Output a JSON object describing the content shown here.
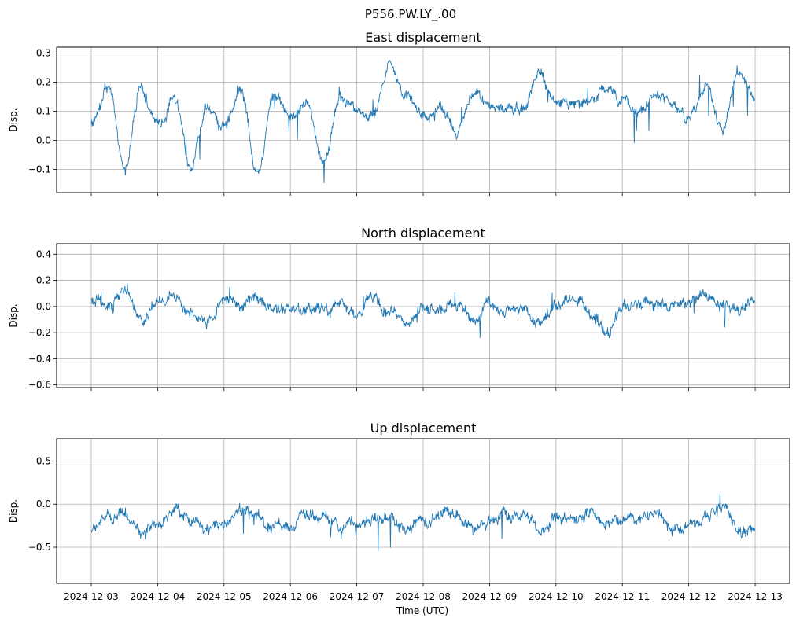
{
  "figure": {
    "suptitle": "P556.PW.LY_.00",
    "xlabel": "Time (UTC)",
    "line_color": "#1f77b4",
    "grid_color": "#b0b0b0"
  },
  "chart_data": [
    {
      "type": "line",
      "title": "East displacement",
      "ylabel": "Disp.",
      "xlim": [
        "2024-12-02 11:30",
        "2024-12-13 12:30"
      ],
      "ylim": [
        -0.18,
        0.32
      ],
      "yticks": [
        "0.3",
        "0.2",
        "0.1",
        "0.0",
        "−0.1"
      ],
      "ytick_values": [
        0.3,
        0.2,
        0.1,
        0.0,
        -0.1
      ],
      "grid": true,
      "x": [
        "2024-12-03 00:00",
        "2024-12-03 06:00",
        "2024-12-03 12:00",
        "2024-12-03 18:00",
        "2024-12-04 00:00",
        "2024-12-04 06:00",
        "2024-12-04 12:00",
        "2024-12-04 18:00",
        "2024-12-05 00:00",
        "2024-12-05 06:00",
        "2024-12-05 12:00",
        "2024-12-05 18:00",
        "2024-12-06 00:00",
        "2024-12-06 06:00",
        "2024-12-06 12:00",
        "2024-12-06 18:00",
        "2024-12-07 00:00",
        "2024-12-07 06:00",
        "2024-12-07 12:00",
        "2024-12-07 18:00",
        "2024-12-08 00:00",
        "2024-12-08 06:00",
        "2024-12-08 12:00",
        "2024-12-08 18:00",
        "2024-12-09 00:00",
        "2024-12-09 06:00",
        "2024-12-09 12:00",
        "2024-12-09 18:00",
        "2024-12-10 00:00",
        "2024-12-10 06:00",
        "2024-12-10 12:00",
        "2024-12-10 18:00",
        "2024-12-11 00:00",
        "2024-12-11 06:00",
        "2024-12-11 12:00",
        "2024-12-11 18:00",
        "2024-12-12 00:00",
        "2024-12-12 06:00",
        "2024-12-12 12:00",
        "2024-12-12 18:00",
        "2024-12-13 00:00"
      ],
      "y": [
        0.06,
        0.19,
        -0.1,
        0.18,
        0.05,
        0.14,
        -0.09,
        0.12,
        0.05,
        0.18,
        -0.11,
        0.16,
        0.08,
        0.13,
        -0.08,
        0.14,
        0.1,
        0.08,
        0.25,
        0.16,
        0.08,
        0.1,
        0.03,
        0.16,
        0.12,
        0.11,
        0.1,
        0.24,
        0.14,
        0.12,
        0.13,
        0.18,
        0.13,
        0.09,
        0.16,
        0.12,
        0.08,
        0.18,
        0.03,
        0.24,
        0.14
      ]
    },
    {
      "type": "line",
      "title": "North displacement",
      "ylabel": "Disp.",
      "xlim": [
        "2024-12-02 11:30",
        "2024-12-13 12:30"
      ],
      "ylim": [
        -0.62,
        0.48
      ],
      "yticks": [
        "0.4",
        "0.2",
        "0.0",
        "−0.2",
        "−0.4",
        "−0.6"
      ],
      "ytick_values": [
        0.4,
        0.2,
        0.0,
        -0.2,
        -0.4,
        -0.6
      ],
      "grid": true,
      "x": [
        "2024-12-03 00:00",
        "2024-12-03 06:00",
        "2024-12-03 12:00",
        "2024-12-03 18:00",
        "2024-12-04 00:00",
        "2024-12-04 06:00",
        "2024-12-04 12:00",
        "2024-12-04 18:00",
        "2024-12-05 00:00",
        "2024-12-05 06:00",
        "2024-12-05 12:00",
        "2024-12-05 18:00",
        "2024-12-06 00:00",
        "2024-12-06 06:00",
        "2024-12-06 12:00",
        "2024-12-06 18:00",
        "2024-12-07 00:00",
        "2024-12-07 06:00",
        "2024-12-07 12:00",
        "2024-12-07 18:00",
        "2024-12-08 00:00",
        "2024-12-08 06:00",
        "2024-12-08 12:00",
        "2024-12-08 18:00",
        "2024-12-09 00:00",
        "2024-12-09 06:00",
        "2024-12-09 12:00",
        "2024-12-09 18:00",
        "2024-12-10 00:00",
        "2024-12-10 06:00",
        "2024-12-10 12:00",
        "2024-12-10 18:00",
        "2024-12-11 00:00",
        "2024-12-11 06:00",
        "2024-12-11 12:00",
        "2024-12-11 18:00",
        "2024-12-12 00:00",
        "2024-12-12 06:00",
        "2024-12-12 12:00",
        "2024-12-12 18:00",
        "2024-12-13 00:00"
      ],
      "y": [
        0.05,
        0.02,
        0.12,
        -0.1,
        0.02,
        0.08,
        -0.05,
        -0.12,
        0.05,
        0.0,
        0.08,
        -0.02,
        -0.02,
        -0.02,
        -0.05,
        0.04,
        -0.05,
        0.05,
        -0.05,
        -0.15,
        0.0,
        -0.03,
        0.05,
        -0.1,
        0.03,
        -0.03,
        -0.02,
        -0.12,
        0.02,
        0.05,
        -0.05,
        -0.2,
        0.0,
        0.02,
        0.04,
        0.0,
        0.05,
        0.1,
        0.0,
        -0.05,
        0.06
      ]
    },
    {
      "type": "line",
      "title": "Up displacement",
      "ylabel": "Disp.",
      "xlim": [
        "2024-12-02 11:30",
        "2024-12-13 12:30"
      ],
      "ylim": [
        -0.92,
        0.76
      ],
      "yticks": [
        "0.5",
        "0.0",
        "−0.5"
      ],
      "ytick_values": [
        0.5,
        0.0,
        -0.5
      ],
      "grid": true,
      "xticks": [
        "2024-12-03",
        "2024-12-04",
        "2024-12-05",
        "2024-12-06",
        "2024-12-07",
        "2024-12-08",
        "2024-12-09",
        "2024-12-10",
        "2024-12-11",
        "2024-12-12",
        "2024-12-13"
      ],
      "x": [
        "2024-12-03 00:00",
        "2024-12-03 06:00",
        "2024-12-03 12:00",
        "2024-12-03 18:00",
        "2024-12-04 00:00",
        "2024-12-04 06:00",
        "2024-12-04 12:00",
        "2024-12-04 18:00",
        "2024-12-05 00:00",
        "2024-12-05 06:00",
        "2024-12-05 12:00",
        "2024-12-05 18:00",
        "2024-12-06 00:00",
        "2024-12-06 06:00",
        "2024-12-06 12:00",
        "2024-12-06 18:00",
        "2024-12-07 00:00",
        "2024-12-07 06:00",
        "2024-12-07 12:00",
        "2024-12-07 18:00",
        "2024-12-08 00:00",
        "2024-12-08 06:00",
        "2024-12-08 12:00",
        "2024-12-08 18:00",
        "2024-12-09 00:00",
        "2024-12-09 06:00",
        "2024-12-09 12:00",
        "2024-12-09 18:00",
        "2024-12-10 00:00",
        "2024-12-10 06:00",
        "2024-12-10 12:00",
        "2024-12-10 18:00",
        "2024-12-11 00:00",
        "2024-12-11 06:00",
        "2024-12-11 12:00",
        "2024-12-11 18:00",
        "2024-12-12 00:00",
        "2024-12-12 06:00",
        "2024-12-12 12:00",
        "2024-12-12 18:00",
        "2024-12-13 00:00"
      ],
      "y": [
        -0.3,
        -0.15,
        -0.1,
        -0.35,
        -0.25,
        -0.05,
        -0.2,
        -0.3,
        -0.25,
        -0.05,
        -0.15,
        -0.25,
        -0.25,
        -0.1,
        -0.15,
        -0.25,
        -0.2,
        -0.2,
        -0.15,
        -0.3,
        -0.2,
        -0.15,
        -0.1,
        -0.25,
        -0.2,
        -0.15,
        -0.1,
        -0.3,
        -0.15,
        -0.2,
        -0.1,
        -0.25,
        -0.2,
        -0.15,
        -0.1,
        -0.3,
        -0.25,
        -0.15,
        -0.05,
        -0.3,
        -0.3
      ]
    }
  ]
}
